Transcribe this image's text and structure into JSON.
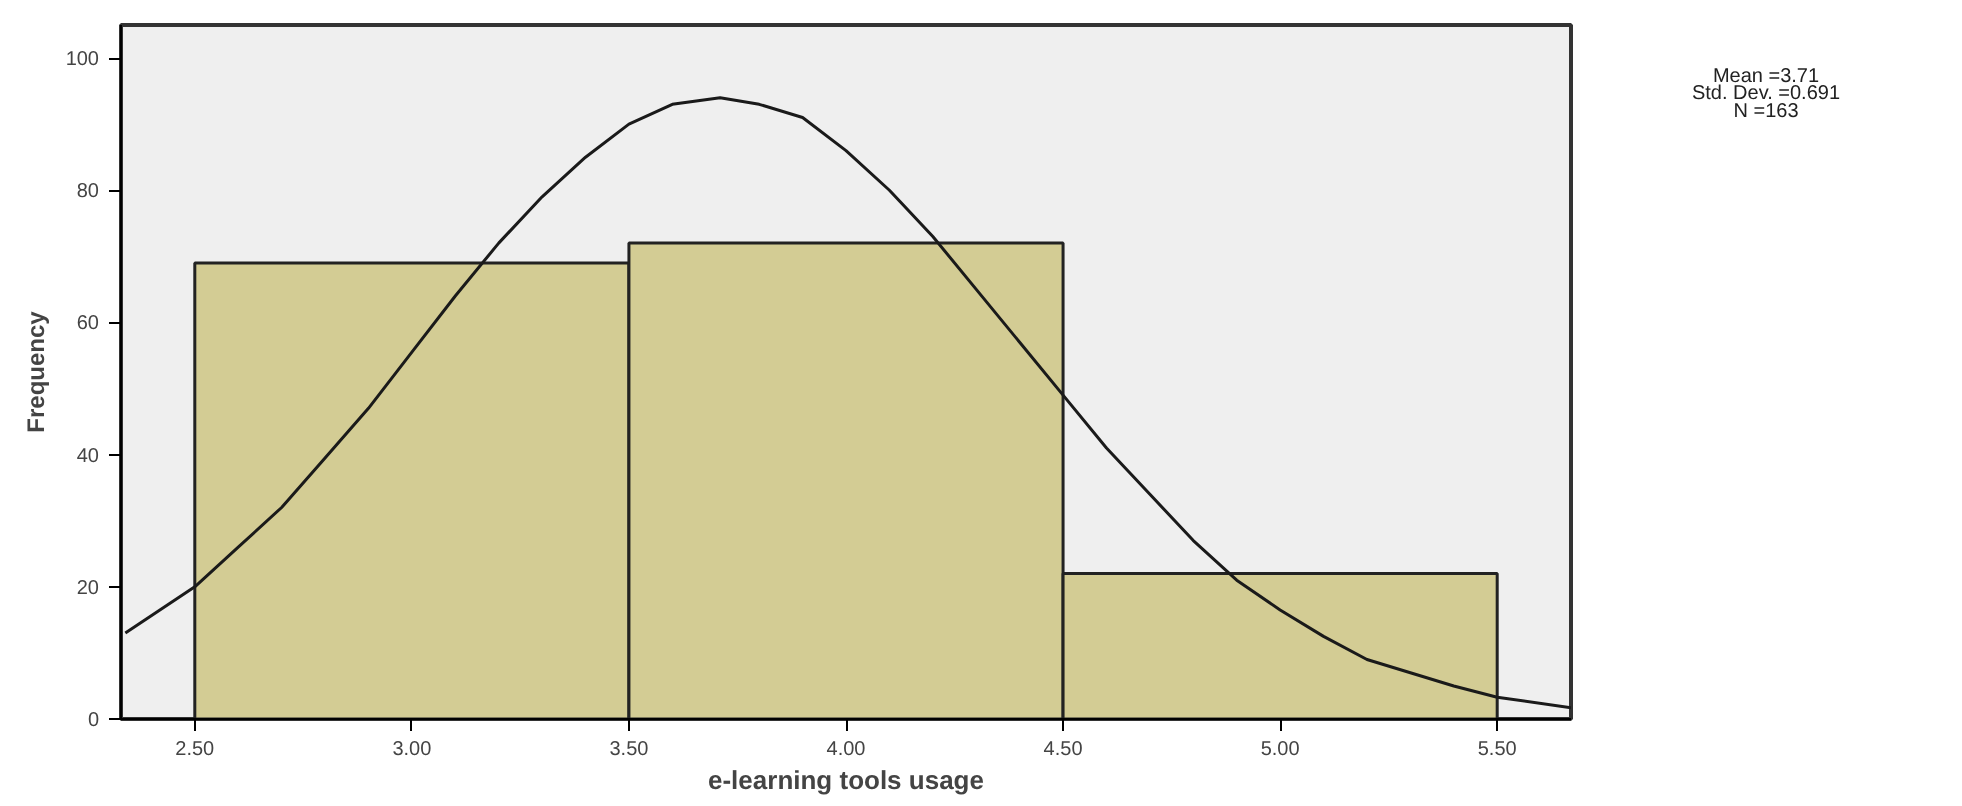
{
  "chart_data": {
    "type": "histogram",
    "xlabel": "e-learning tools usage",
    "ylabel": "Frequency",
    "bins": [
      2.5,
      3.5,
      4.5,
      5.5
    ],
    "values": [
      69,
      72,
      22
    ],
    "color": "#d3cc94",
    "series": [
      {
        "type": "line",
        "color": "#1a1a1a",
        "x": [
          2.34,
          2.5,
          2.6,
          2.7,
          2.8,
          2.9,
          3.0,
          3.1,
          3.2,
          3.3,
          3.4,
          3.5,
          3.6,
          3.71,
          3.8,
          3.9,
          4.0,
          4.1,
          4.2,
          4.3,
          4.4,
          4.5,
          4.6,
          4.7,
          4.8,
          4.9,
          5.0,
          5.1,
          5.2,
          5.3,
          5.4,
          5.5,
          5.67
        ],
        "values": [
          13,
          20,
          26,
          32,
          39.5,
          47,
          55.5,
          64,
          72,
          79,
          85,
          90,
          93,
          94,
          93,
          91,
          86,
          80,
          73,
          65,
          57,
          49,
          41,
          34,
          27,
          21,
          16.5,
          12.5,
          9,
          7,
          5,
          3.3,
          1.7
        ]
      }
    ],
    "xlim": [
      2.33,
      5.67
    ],
    "ylim": [
      0,
      105
    ],
    "xticks": [
      {
        "value": 2.5,
        "label": "2.50"
      },
      {
        "value": 3,
        "label": "3.00"
      },
      {
        "value": 3.5,
        "label": "3.50"
      },
      {
        "value": 4,
        "label": "4.00"
      },
      {
        "value": 4.5,
        "label": "4.50"
      },
      {
        "value": 5,
        "label": "5.00"
      },
      {
        "value": 5.5,
        "label": "5.50"
      }
    ],
    "yticks": [
      0,
      20,
      40,
      60,
      80,
      100
    ],
    "grid": false,
    "annotations": [
      "Mean =3.71",
      "Std. Dev. =0.691",
      "N =163"
    ]
  }
}
